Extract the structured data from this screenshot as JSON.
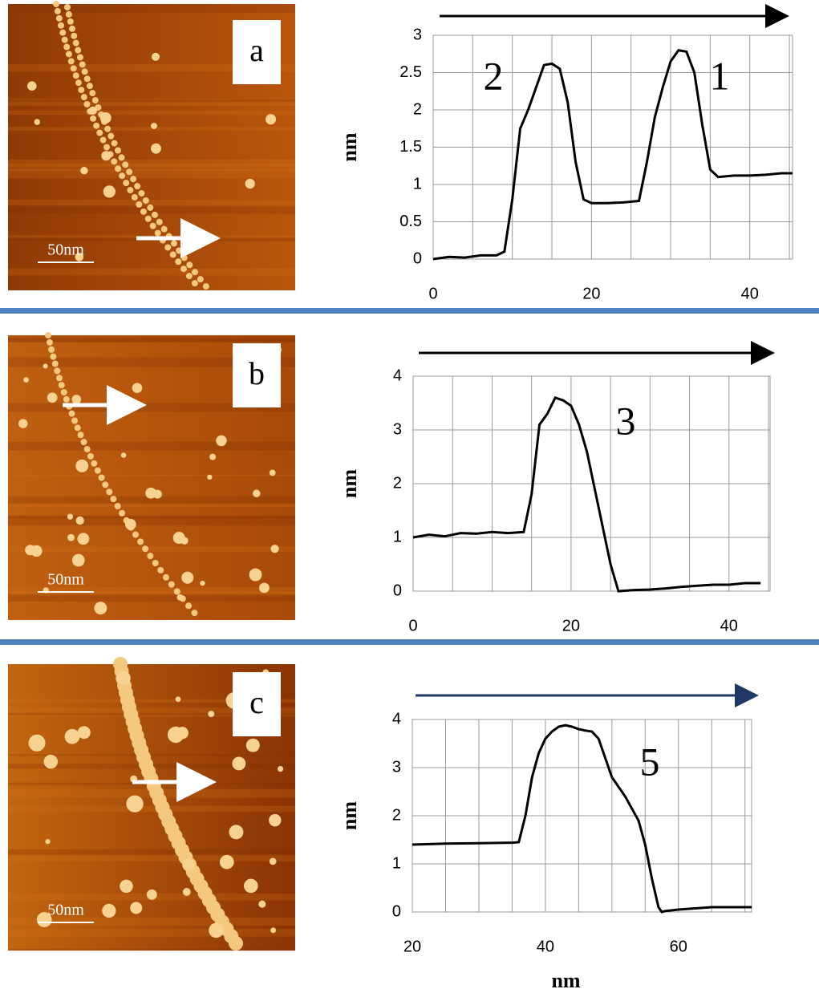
{
  "images": [
    {
      "label": "a",
      "scale_bar": "50nm"
    },
    {
      "label": "b",
      "scale_bar": "50nm"
    },
    {
      "label": "c",
      "scale_bar": "50nm"
    }
  ],
  "chart_data": [
    {
      "type": "line",
      "y_label": "nm",
      "annotations": [
        "2",
        "1"
      ],
      "color": "#000000",
      "grid": true,
      "x": [
        0,
        2,
        4,
        6,
        8,
        9,
        10,
        11,
        12,
        13,
        14,
        15,
        16,
        17,
        18,
        19,
        20,
        22,
        24,
        26,
        27,
        28,
        29,
        30,
        31,
        32,
        33,
        34,
        35,
        36,
        38,
        40,
        42,
        44,
        45.4
      ],
      "values": [
        0,
        0.03,
        0.02,
        0.05,
        0.05,
        0.1,
        0.8,
        1.75,
        2.0,
        2.3,
        2.6,
        2.62,
        2.55,
        2.1,
        1.3,
        0.8,
        0.75,
        0.75,
        0.76,
        0.78,
        1.3,
        1.9,
        2.3,
        2.65,
        2.8,
        2.78,
        2.5,
        1.8,
        1.2,
        1.1,
        1.12,
        1.12,
        1.13,
        1.15,
        1.15
      ],
      "xlim": [
        0,
        45.4
      ],
      "ylim": [
        0,
        3
      ],
      "xticks": [
        0,
        20,
        40
      ],
      "xgrid": [
        0,
        5,
        10,
        15,
        20,
        25,
        30,
        35,
        40,
        45
      ],
      "yticks": [
        0,
        0.5,
        1,
        1.5,
        2,
        2.5,
        3
      ]
    },
    {
      "type": "line",
      "y_label": "nm",
      "annotations": [
        "3"
      ],
      "color": "#000000",
      "grid": true,
      "x": [
        0,
        2,
        4,
        6,
        8,
        10,
        12,
        14,
        15,
        16,
        17,
        18,
        19,
        20,
        21,
        22,
        23,
        24,
        25,
        26,
        28,
        30,
        32,
        34,
        36,
        38,
        40,
        42,
        44
      ],
      "values": [
        1.0,
        1.05,
        1.02,
        1.08,
        1.07,
        1.1,
        1.08,
        1.1,
        1.8,
        3.1,
        3.3,
        3.6,
        3.55,
        3.45,
        3.1,
        2.6,
        1.9,
        1.2,
        0.5,
        0,
        0.02,
        0.03,
        0.05,
        0.08,
        0.1,
        0.12,
        0.12,
        0.15,
        0.15
      ],
      "xlim": [
        0,
        45.2
      ],
      "ylim": [
        0,
        4
      ],
      "xticks": [
        0,
        20,
        40
      ],
      "xgrid": [
        0,
        5,
        10,
        15,
        20,
        25,
        30,
        35,
        40,
        45
      ],
      "yticks": [
        0,
        1,
        2,
        3,
        4
      ]
    },
    {
      "type": "line",
      "x_label": "nm",
      "y_label": "nm",
      "annotations": [
        "5"
      ],
      "color": "#000000",
      "grid": true,
      "x": [
        20,
        25,
        30,
        35,
        36,
        37,
        38,
        39,
        40,
        41,
        42,
        43,
        44,
        45,
        46,
        47,
        48,
        49,
        50,
        52,
        54,
        55,
        56,
        57,
        57.5,
        58,
        60,
        65,
        71
      ],
      "values": [
        1.4,
        1.42,
        1.43,
        1.44,
        1.45,
        2.0,
        2.8,
        3.3,
        3.6,
        3.75,
        3.85,
        3.88,
        3.85,
        3.8,
        3.77,
        3.75,
        3.6,
        3.2,
        2.8,
        2.4,
        1.9,
        1.4,
        0.7,
        0.1,
        0,
        0.02,
        0.05,
        0.1,
        0.1
      ],
      "xlim": [
        20,
        71
      ],
      "ylim": [
        0,
        4
      ],
      "xticks": [
        20,
        40,
        60
      ],
      "xgrid": [
        20,
        25,
        30,
        35,
        40,
        45,
        50,
        55,
        60,
        65,
        70
      ],
      "yticks": [
        0,
        1,
        2,
        3,
        4
      ]
    }
  ]
}
